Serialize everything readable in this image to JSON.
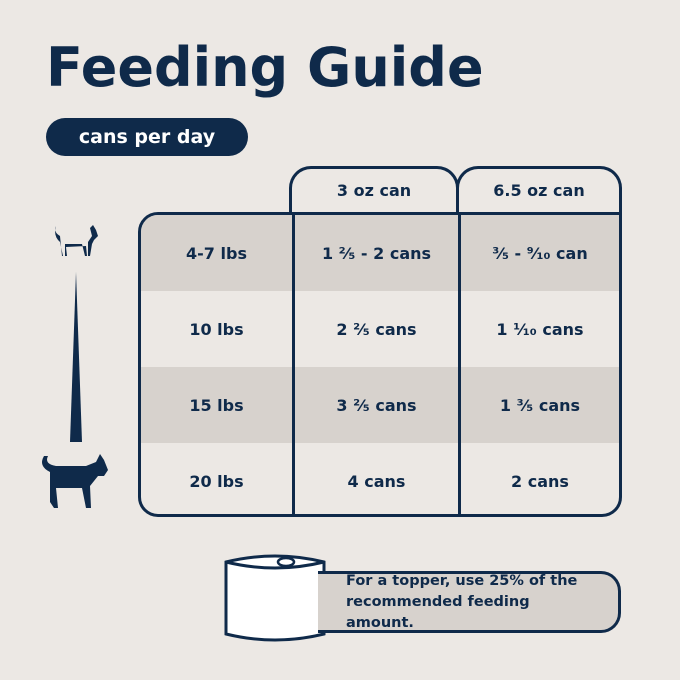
{
  "title": "Feeding Guide",
  "subtitle_pill": "cans per day",
  "table": {
    "headers": [
      "3 oz can",
      "6.5 oz can"
    ],
    "rows": [
      {
        "weight": "4-7 lbs",
        "oz3": "1 ²⁄₅ - 2 cans",
        "oz65": "³⁄₅ - ⁹⁄₁₀ can"
      },
      {
        "weight": "10 lbs",
        "oz3": "2 ²⁄₅ cans",
        "oz65": "1 ¹⁄₁₀ cans"
      },
      {
        "weight": "15 lbs",
        "oz3": "3 ²⁄₅ cans",
        "oz65": "1 ³⁄₅ cans"
      },
      {
        "weight": "20 lbs",
        "oz3": "4 cans",
        "oz65": "2 cans"
      }
    ]
  },
  "topper_note": "For a topper, use 25% of the recommended feeding amount.",
  "colors": {
    "navy": "#0f2a4a",
    "background": "#ece8e4",
    "row_gray": "#d7d2cd"
  },
  "icons": [
    "small-cat-icon",
    "size-wedge-icon",
    "large-cat-icon",
    "can-icon"
  ]
}
